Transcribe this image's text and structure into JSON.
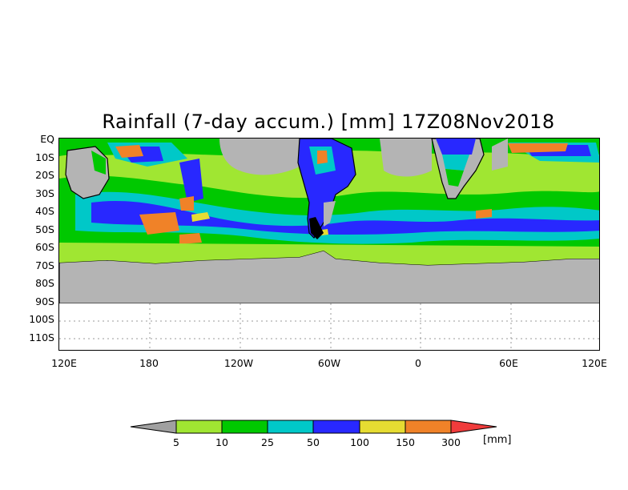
{
  "title": "Rainfall (7-day accum.) [mm] 17Z08Nov2018",
  "lat_labels": [
    "EQ",
    "10S",
    "20S",
    "30S",
    "40S",
    "50S",
    "60S",
    "70S",
    "80S",
    "90S",
    "100S",
    "110S"
  ],
  "lon_labels": [
    "120E",
    "180",
    "120W",
    "60W",
    "0",
    "60E",
    "120E"
  ],
  "colorbar": {
    "unit": "[mm]",
    "levels": [
      "5",
      "10",
      "25",
      "50",
      "100",
      "150",
      "300"
    ],
    "colors": [
      "#a0a0a0",
      "#a0e632",
      "#00c800",
      "#00c8c8",
      "#2828ff",
      "#e6dc32",
      "#f08228",
      "#f03c3c"
    ]
  },
  "chart_data": {
    "type": "heatmap",
    "title": "Rainfall (7-day accum.) [mm] 17Z08Nov2018",
    "unit": "mm",
    "x_range": [
      "120E",
      "120E"
    ],
    "y_range": [
      "EQ",
      "110S"
    ],
    "levels": [
      5,
      10,
      25,
      50,
      100,
      150,
      300
    ],
    "missing_region": "90S-110S (no data)",
    "land_color": "#b4b4b4"
  }
}
